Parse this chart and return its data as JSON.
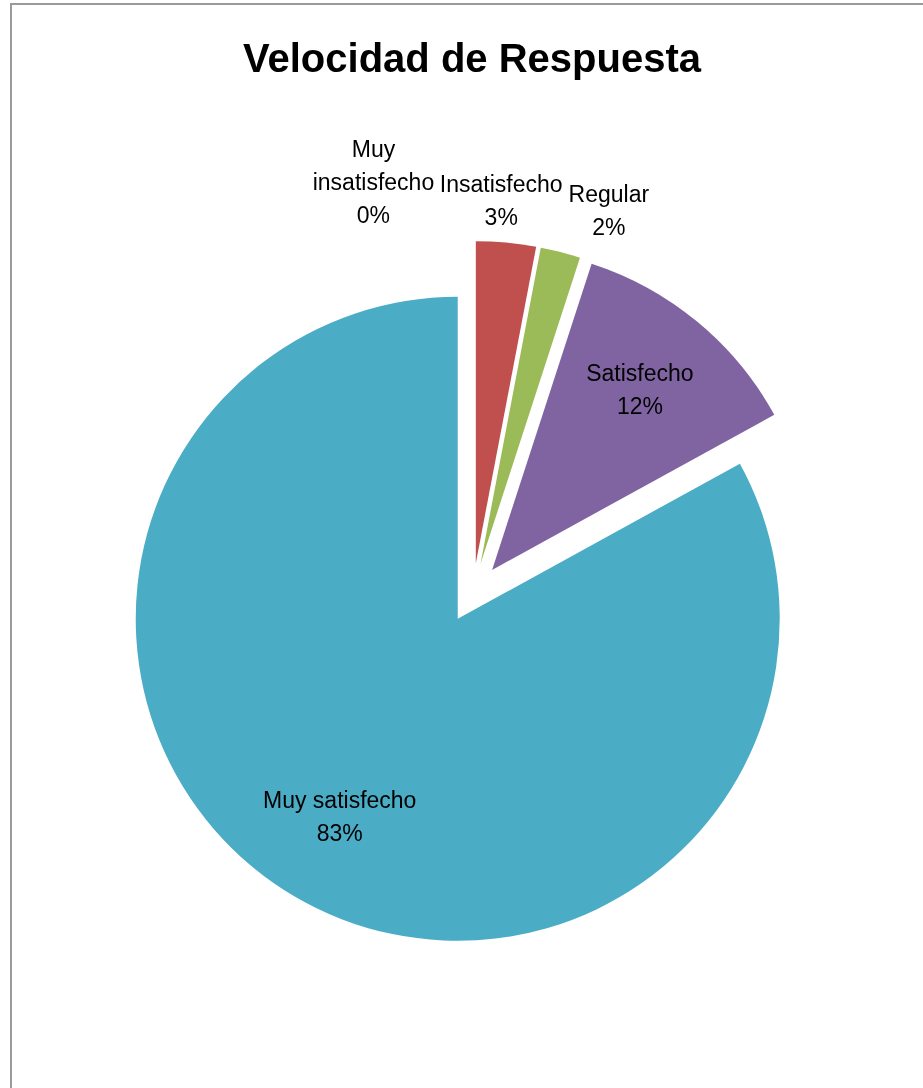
{
  "chart_data": {
    "type": "pie",
    "title": "Velocidad de Respuesta",
    "categories": [
      "Muy insatisfecho",
      "Insatisfecho",
      "Regular",
      "Satisfecho",
      "Muy satisfecho"
    ],
    "values": [
      0,
      3,
      2,
      12,
      83
    ],
    "value_labels": [
      "0%",
      "3%",
      "2%",
      "12%",
      "83%"
    ],
    "colors": [
      "#4f81bd",
      "#c0504d",
      "#9bbb59",
      "#8064a2",
      "#4bacc6"
    ]
  }
}
